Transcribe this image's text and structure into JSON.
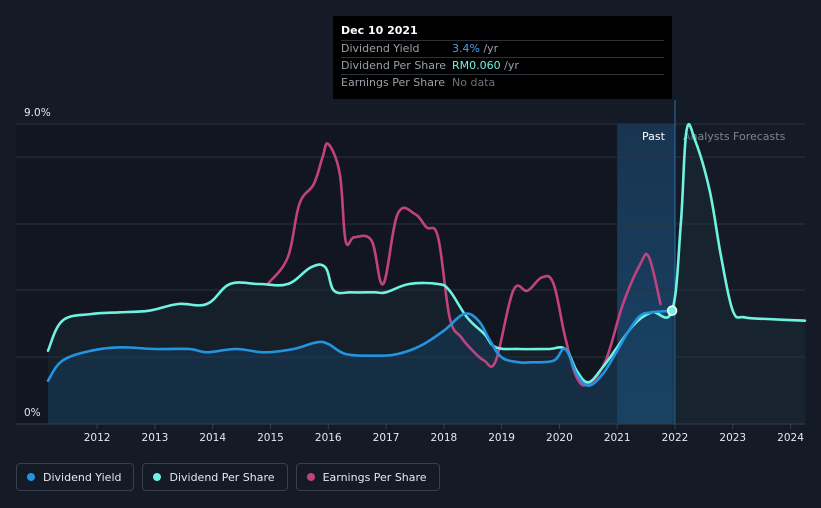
{
  "tooltip": {
    "date": "Dec 10 2021",
    "rows": [
      {
        "label": "Dividend Yield",
        "value": "3.4%",
        "suffix": " /yr"
      },
      {
        "label": "Dividend Per Share",
        "value": "RM0.060",
        "suffix": " /yr"
      },
      {
        "label": "Earnings Per Share",
        "value": "No data",
        "suffix": ""
      }
    ]
  },
  "chart_data": {
    "type": "line",
    "y_axis": {
      "min_label": "0%",
      "max_label": "9.0%",
      "ylim": [
        0,
        9.0
      ]
    },
    "x_axis": {
      "ticks": [
        "2012",
        "2013",
        "2014",
        "2015",
        "2016",
        "2017",
        "2018",
        "2019",
        "2020",
        "2021",
        "2022",
        "2023",
        "2024"
      ],
      "xlim": [
        2011.15,
        2024.25
      ]
    },
    "regions": {
      "past_label": "Past",
      "forecast_label": "Analysts Forecasts",
      "past_band_start": 2021.0,
      "divider": 2022.0
    },
    "highlight_point": {
      "series": "Dividend Per Share",
      "x": 2021.95,
      "y": 3.4
    },
    "colors": {
      "yield": "#2394df",
      "dps": "#6ff3e0",
      "eps": "#c2427e"
    },
    "series": [
      {
        "name": "Dividend Yield",
        "x": [
          2011.15,
          2011.4,
          2011.9,
          2012.4,
          2013.0,
          2013.6,
          2013.9,
          2014.4,
          2014.9,
          2015.4,
          2015.8,
          2016.0,
          2016.3,
          2016.8,
          2017.2,
          2017.6,
          2018.0,
          2018.35,
          2018.6,
          2018.8,
          2019.0,
          2019.3,
          2019.5,
          2019.9,
          2020.1,
          2020.3,
          2020.5,
          2020.75,
          2021.0,
          2021.2,
          2021.4,
          2021.6,
          2021.95
        ],
        "values": [
          1.3,
          1.9,
          2.2,
          2.3,
          2.25,
          2.25,
          2.15,
          2.25,
          2.15,
          2.25,
          2.45,
          2.4,
          2.1,
          2.05,
          2.1,
          2.35,
          2.8,
          3.3,
          3.1,
          2.5,
          2.0,
          1.85,
          1.85,
          1.9,
          2.25,
          1.5,
          1.15,
          1.5,
          2.2,
          2.8,
          3.25,
          3.35,
          3.4
        ]
      },
      {
        "name": "Dividend Per Share",
        "x": [
          2011.15,
          2011.4,
          2011.9,
          2012.4,
          2012.9,
          2013.4,
          2013.9,
          2014.3,
          2014.8,
          2015.3,
          2015.7,
          2015.95,
          2016.1,
          2016.4,
          2016.8,
          2017.0,
          2017.4,
          2017.9,
          2018.1,
          2018.4,
          2018.7,
          2018.9,
          2019.3,
          2019.8,
          2020.1,
          2020.3,
          2020.5,
          2020.75,
          2021.0,
          2021.3,
          2021.6,
          2021.95,
          2022.1,
          2022.2,
          2022.35,
          2022.6,
          2022.8,
          2023.0,
          2023.2,
          2023.6,
          2024.25
        ],
        "values": [
          2.2,
          3.1,
          3.3,
          3.35,
          3.4,
          3.6,
          3.6,
          4.2,
          4.2,
          4.2,
          4.7,
          4.7,
          4.0,
          3.95,
          3.95,
          3.95,
          4.2,
          4.2,
          4.0,
          3.2,
          2.7,
          2.3,
          2.25,
          2.25,
          2.25,
          1.6,
          1.25,
          1.7,
          2.3,
          3.0,
          3.35,
          3.4,
          6.0,
          8.8,
          8.5,
          7.0,
          5.0,
          3.4,
          3.2,
          3.15,
          3.1
        ]
      },
      {
        "name": "Earnings Per Share",
        "x": [
          2014.95,
          2015.3,
          2015.5,
          2015.75,
          2015.9,
          2016.0,
          2016.2,
          2016.3,
          2016.45,
          2016.75,
          2016.95,
          2017.2,
          2017.5,
          2017.7,
          2017.9,
          2018.1,
          2018.3,
          2018.5,
          2018.7,
          2018.9,
          2019.2,
          2019.45,
          2019.7,
          2019.9,
          2020.1,
          2020.3,
          2020.5,
          2020.8,
          2021.1,
          2021.4,
          2021.55,
          2021.75
        ],
        "values": [
          4.2,
          5.0,
          6.6,
          7.2,
          8.0,
          8.4,
          7.5,
          5.5,
          5.6,
          5.5,
          4.2,
          6.3,
          6.3,
          5.9,
          5.6,
          3.2,
          2.6,
          2.2,
          1.9,
          1.9,
          4.0,
          4.0,
          4.4,
          4.2,
          2.6,
          1.4,
          1.2,
          1.9,
          3.6,
          4.8,
          5.0,
          3.6
        ]
      }
    ]
  },
  "legend": [
    {
      "label": "Dividend Yield",
      "color": "#2394df"
    },
    {
      "label": "Dividend Per Share",
      "color": "#6ff3e0"
    },
    {
      "label": "Earnings Per Share",
      "color": "#c2427e"
    }
  ]
}
